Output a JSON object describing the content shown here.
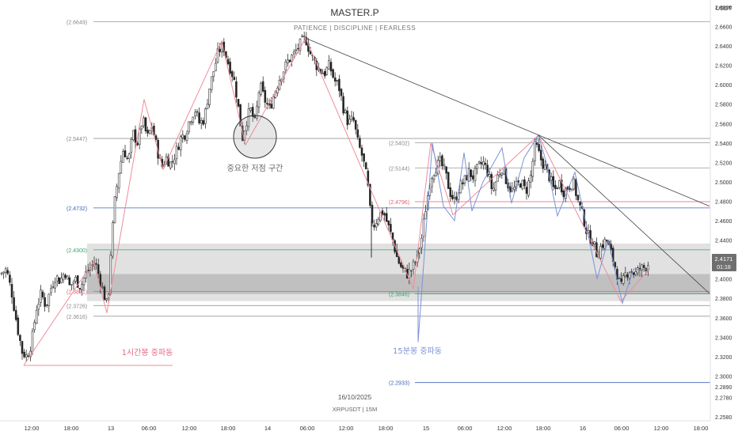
{
  "header": {
    "title": "MASTER.P",
    "subtitle": "PATIENCE | DISCIPLINE | FEARLESS"
  },
  "footer": {
    "date": "16/10/2025",
    "symbol": "XRPUSDT | 15M"
  },
  "colors": {
    "up": "#ffffff",
    "down": "#222222",
    "wick": "#333333",
    "pink": "#f08c9b",
    "blue": "#7b93d6",
    "grid_line": "#999999",
    "red_line": "#e06070",
    "green_line": "#3aa36c",
    "blue_line": "#3f63b8",
    "zone": "#c8c8c8"
  },
  "chart_data": {
    "type": "candlestick",
    "currency": "USDT",
    "y_axis": {
      "min": 2.258,
      "max": 2.68,
      "ticks": [
        "2.6800",
        "2.6600",
        "2.6400",
        "2.6200",
        "2.6000",
        "2.5800",
        "2.5600",
        "2.5400",
        "2.5200",
        "2.5000",
        "2.4800",
        "2.4600",
        "2.4400",
        "2.4200",
        "2.4000",
        "2.3800",
        "2.3600",
        "2.3400",
        "2.3200",
        "2.3000",
        "2.2890",
        "2.2780",
        "2.2580"
      ]
    },
    "x_axis": {
      "ticks": [
        "12:00",
        "18:00",
        "13",
        "06:00",
        "12:00",
        "18:00",
        "14",
        "06:00",
        "12:00",
        "18:00",
        "15",
        "06:00",
        "12:00",
        "18:00",
        "16",
        "06:00",
        "12:00",
        "18:00"
      ]
    },
    "current_price": {
      "value": 2.4171,
      "label": "2.4171",
      "countdown": "01:18"
    },
    "levels": [
      {
        "label": "(2.6649)",
        "value": 2.6649,
        "kind": "gray"
      },
      {
        "label": "(2.5447)",
        "value": 2.5447,
        "kind": "gray"
      },
      {
        "label": "(2.5402)",
        "value": 2.5402,
        "kind": "gray"
      },
      {
        "label": "(2.5144)",
        "value": 2.5144,
        "kind": "gray"
      },
      {
        "label": "(2.4796)",
        "value": 2.4796,
        "kind": "red"
      },
      {
        "label": "(2.4732)",
        "value": 2.4732,
        "kind": "blue"
      },
      {
        "label": "(2.4300)",
        "value": 2.43,
        "kind": "green"
      },
      {
        "label": "(2.3871)",
        "value": 2.3871,
        "kind": "red"
      },
      {
        "label": "(2.3846)",
        "value": 2.3846,
        "kind": "green"
      },
      {
        "label": "(2.3726)",
        "value": 2.3726,
        "kind": "gray"
      },
      {
        "label": "(2.3616)",
        "value": 2.3616,
        "kind": "gray"
      },
      {
        "label": "(2.2933)",
        "value": 2.2933,
        "kind": "blue"
      }
    ],
    "annotations": [
      {
        "text": "중요한 저점 구간",
        "kind": "gray"
      },
      {
        "text": "1시간봉 중파동",
        "kind": "pink"
      },
      {
        "text": "15분봉 중파동",
        "kind": "blue"
      }
    ],
    "price_path": [
      [
        0,
        2.405
      ],
      [
        8,
        2.41
      ],
      [
        15,
        2.385
      ],
      [
        22,
        2.35
      ],
      [
        28,
        2.325
      ],
      [
        34,
        2.32
      ],
      [
        40,
        2.335
      ],
      [
        46,
        2.37
      ],
      [
        52,
        2.385
      ],
      [
        58,
        2.372
      ],
      [
        64,
        2.39
      ],
      [
        70,
        2.403
      ],
      [
        76,
        2.398
      ],
      [
        82,
        2.408
      ],
      [
        88,
        2.392
      ],
      [
        95,
        2.4
      ],
      [
        102,
        2.392
      ],
      [
        108,
        2.405
      ],
      [
        114,
        2.412
      ],
      [
        120,
        2.418
      ],
      [
        126,
        2.4
      ],
      [
        131,
        2.385
      ],
      [
        136,
        2.37
      ],
      [
        140,
        2.43
      ],
      [
        145,
        2.48
      ],
      [
        150,
        2.51
      ],
      [
        156,
        2.535
      ],
      [
        162,
        2.52
      ],
      [
        168,
        2.55
      ],
      [
        174,
        2.54
      ],
      [
        180,
        2.565
      ],
      [
        186,
        2.545
      ],
      [
        192,
        2.558
      ],
      [
        198,
        2.535
      ],
      [
        204,
        2.515
      ],
      [
        210,
        2.525
      ],
      [
        216,
        2.518
      ],
      [
        222,
        2.53
      ],
      [
        228,
        2.545
      ],
      [
        234,
        2.55
      ],
      [
        240,
        2.565
      ],
      [
        246,
        2.575
      ],
      [
        252,
        2.56
      ],
      [
        258,
        2.565
      ],
      [
        264,
        2.595
      ],
      [
        270,
        2.615
      ],
      [
        276,
        2.635
      ],
      [
        282,
        2.64
      ],
      [
        287,
        2.625
      ],
      [
        292,
        2.615
      ],
      [
        297,
        2.6
      ],
      [
        302,
        2.57
      ],
      [
        306,
        2.545
      ],
      [
        310,
        2.56
      ],
      [
        316,
        2.575
      ],
      [
        322,
        2.56
      ],
      [
        328,
        2.6
      ],
      [
        334,
        2.585
      ],
      [
        340,
        2.575
      ],
      [
        346,
        2.59
      ],
      [
        352,
        2.605
      ],
      [
        358,
        2.615
      ],
      [
        364,
        2.625
      ],
      [
        370,
        2.63
      ],
      [
        376,
        2.638
      ],
      [
        382,
        2.645
      ],
      [
        386,
        2.648
      ],
      [
        392,
        2.632
      ],
      [
        398,
        2.622
      ],
      [
        404,
        2.615
      ],
      [
        410,
        2.612
      ],
      [
        416,
        2.62
      ],
      [
        422,
        2.605
      ],
      [
        428,
        2.598
      ],
      [
        434,
        2.575
      ],
      [
        440,
        2.56
      ],
      [
        446,
        2.565
      ],
      [
        452,
        2.54
      ],
      [
        458,
        2.525
      ],
      [
        464,
        2.5
      ],
      [
        468,
        2.465
      ],
      [
        472,
        2.455
      ],
      [
        478,
        2.465
      ],
      [
        484,
        2.47
      ],
      [
        490,
        2.455
      ],
      [
        496,
        2.44
      ],
      [
        502,
        2.42
      ],
      [
        508,
        2.41
      ],
      [
        514,
        2.405
      ],
      [
        520,
        2.41
      ],
      [
        526,
        2.42
      ],
      [
        532,
        2.44
      ],
      [
        538,
        2.475
      ],
      [
        544,
        2.505
      ],
      [
        550,
        2.515
      ],
      [
        556,
        2.52
      ],
      [
        562,
        2.51
      ],
      [
        568,
        2.49
      ],
      [
        574,
        2.48
      ],
      [
        580,
        2.495
      ],
      [
        586,
        2.5
      ],
      [
        592,
        2.51
      ],
      [
        598,
        2.505
      ],
      [
        604,
        2.515
      ],
      [
        610,
        2.52
      ],
      [
        616,
        2.51
      ],
      [
        622,
        2.49
      ],
      [
        628,
        2.505
      ],
      [
        634,
        2.515
      ],
      [
        640,
        2.5
      ],
      [
        646,
        2.49
      ],
      [
        652,
        2.495
      ],
      [
        658,
        2.5
      ],
      [
        664,
        2.49
      ],
      [
        670,
        2.505
      ],
      [
        676,
        2.54
      ],
      [
        682,
        2.525
      ],
      [
        688,
        2.515
      ],
      [
        694,
        2.505
      ],
      [
        700,
        2.49
      ],
      [
        706,
        2.5
      ],
      [
        712,
        2.49
      ],
      [
        718,
        2.495
      ],
      [
        724,
        2.5
      ],
      [
        730,
        2.48
      ],
      [
        736,
        2.465
      ],
      [
        742,
        2.445
      ],
      [
        748,
        2.44
      ],
      [
        754,
        2.425
      ],
      [
        760,
        2.435
      ],
      [
        766,
        2.44
      ],
      [
        772,
        2.425
      ],
      [
        778,
        2.41
      ],
      [
        784,
        2.39
      ],
      [
        790,
        2.405
      ],
      [
        796,
        2.41
      ],
      [
        802,
        2.405
      ],
      [
        808,
        2.41
      ],
      [
        814,
        2.412
      ],
      [
        820,
        2.417
      ]
    ],
    "pink_wave_1h": [
      [
        30,
        2.311
      ],
      [
        118,
        2.418
      ],
      [
        135,
        2.365
      ],
      [
        182,
        2.585
      ],
      [
        206,
        2.513
      ],
      [
        280,
        2.645
      ],
      [
        310,
        2.538
      ],
      [
        386,
        2.648
      ],
      [
        522,
        2.39
      ],
      [
        544,
        2.54
      ],
      [
        572,
        2.466
      ],
      [
        680,
        2.548
      ],
      [
        784,
        2.377
      ],
      [
        820,
        2.41
      ]
    ],
    "blue_wave_15m": [
      [
        528,
        2.335
      ],
      [
        546,
        2.54
      ],
      [
        560,
        2.475
      ],
      [
        574,
        2.46
      ],
      [
        586,
        2.53
      ],
      [
        596,
        2.47
      ],
      [
        610,
        2.5
      ],
      [
        634,
        2.535
      ],
      [
        646,
        2.478
      ],
      [
        662,
        2.525
      ],
      [
        680,
        2.548
      ],
      [
        690,
        2.52
      ],
      [
        704,
        2.465
      ],
      [
        726,
        2.51
      ],
      [
        738,
        2.465
      ],
      [
        754,
        2.4
      ],
      [
        768,
        2.44
      ],
      [
        786,
        2.375
      ],
      [
        800,
        2.41
      ],
      [
        820,
        2.41
      ]
    ],
    "trendlines": [
      {
        "from": [
          386,
          2.648
        ],
        "to": [
          896,
          2.475
        ]
      },
      {
        "from": [
          680,
          2.548
        ],
        "to": [
          896,
          2.385
        ]
      }
    ]
  }
}
